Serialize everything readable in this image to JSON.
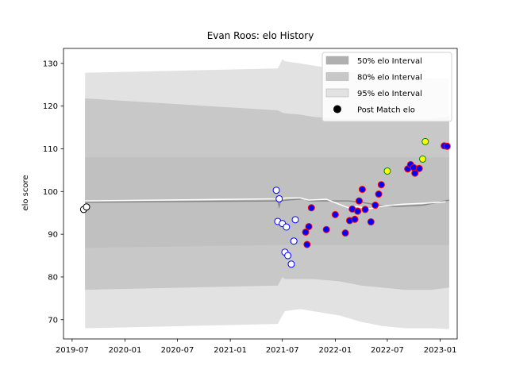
{
  "chart_data": {
    "type": "scatter",
    "title": "Evan Roos: elo History",
    "xlabel": "",
    "ylabel": "elo score",
    "x_ticks": [
      "2019-07",
      "2020-01",
      "2020-07",
      "2021-01",
      "2021-07",
      "2022-01",
      "2022-07",
      "2023-01"
    ],
    "y_ticks": [
      70,
      80,
      90,
      100,
      110,
      120,
      130
    ],
    "xlim": [
      "2019-06-01",
      "2023-03-01"
    ],
    "ylim": [
      65.5,
      133.5
    ],
    "legend": {
      "position": "top-right",
      "entries": [
        {
          "label": "50% elo Interval",
          "color": "#b0b0b0",
          "kind": "patch"
        },
        {
          "label": "80% elo Interval",
          "color": "#c8c8c8",
          "kind": "patch"
        },
        {
          "label": "95% elo Interval",
          "color": "#e2e2e2",
          "kind": "patch"
        },
        {
          "label": "Post Match elo",
          "color": "#000000",
          "kind": "marker"
        }
      ]
    },
    "bands": {
      "x": [
        "2019-08-15",
        "2021-06-15",
        "2021-07-01",
        "2021-07-10",
        "2021-09-01",
        "2021-10-15",
        "2022-01-15",
        "2022-04-01",
        "2022-06-15",
        "2022-09-01",
        "2022-12-01",
        "2023-02-01"
      ],
      "b95": {
        "upper": [
          127.8,
          128.8,
          131.0,
          130.5,
          130.0,
          129.5,
          128.5,
          127.5,
          127.0,
          126.8,
          126.5,
          126.5
        ],
        "lower": [
          68.0,
          69.0,
          71.0,
          72.0,
          72.5,
          72.0,
          71.0,
          69.5,
          68.5,
          68.0,
          68.0,
          67.8
        ],
        "color": "#e2e2e2"
      },
      "b80": {
        "upper": [
          121.8,
          119.0,
          118.5,
          118.3,
          118.0,
          117.5,
          117.0,
          117.0,
          117.0,
          117.0,
          117.0,
          117.5
        ],
        "lower": [
          77.0,
          78.0,
          80.0,
          79.5,
          79.5,
          79.5,
          79.0,
          78.0,
          77.5,
          77.0,
          77.0,
          77.5
        ],
        "color": "#c8c8c8"
      },
      "b50": {
        "upper": [
          108.0,
          108.0,
          108.0,
          108.0,
          108.0,
          108.0,
          108.0,
          108.0,
          108.0,
          108.0,
          108.0,
          108.0
        ],
        "lower": [
          86.8,
          87.5,
          87.5,
          87.5,
          87.5,
          87.5,
          87.5,
          87.5,
          87.5,
          87.5,
          87.5,
          87.5
        ],
        "color": "#c0c0c0"
      }
    },
    "lines": [
      {
        "color": "#888888",
        "x": [
          "2019-08-15",
          "2021-06-15",
          "2021-06-20",
          "2021-06-25",
          "2021-07-15",
          "2021-09-15",
          "2021-10-01",
          "2022-02-15",
          "2022-04-01",
          "2022-06-01",
          "2022-08-01",
          "2022-11-01",
          "2023-02-01"
        ],
        "y": [
          97.5,
          97.8,
          96.5,
          97.8,
          98.0,
          98.3,
          97.8,
          97.8,
          97.5,
          96.8,
          96.5,
          96.8,
          98.0
        ]
      },
      {
        "color": "#ffffff",
        "x": [
          "2019-08-15",
          "2021-06-15",
          "2021-07-15",
          "2021-09-01",
          "2021-10-01",
          "2021-12-01",
          "2022-02-15",
          "2022-03-15",
          "2022-05-01",
          "2022-06-15",
          "2022-08-15",
          "2022-11-15",
          "2023-01-20"
        ],
        "y": [
          97.8,
          98.3,
          98.5,
          98.5,
          98.0,
          98.2,
          96.2,
          96.5,
          96.0,
          96.6,
          97.0,
          97.3,
          97.6
        ]
      }
    ],
    "series": [
      {
        "fill": "#ffffff",
        "stroke": "#000000",
        "points": [
          [
            "2019-08-10",
            95.8
          ],
          [
            "2019-08-20",
            96.4
          ]
        ]
      },
      {
        "fill": "#ffffff",
        "stroke": "#0000ff",
        "points": [
          [
            "2021-06-10",
            100.3
          ],
          [
            "2021-06-20",
            98.3
          ],
          [
            "2021-06-15",
            93.0
          ],
          [
            "2021-07-01",
            92.5
          ],
          [
            "2021-07-15",
            91.7
          ],
          [
            "2021-07-10",
            85.8
          ],
          [
            "2021-07-20",
            85.0
          ],
          [
            "2021-08-01",
            83.0
          ],
          [
            "2021-08-10",
            88.4
          ],
          [
            "2021-08-15",
            93.4
          ]
        ]
      },
      {
        "fill": "#0000ff",
        "stroke": "#ff0000",
        "points": [
          [
            "2021-09-20",
            90.5
          ],
          [
            "2021-09-25",
            87.6
          ],
          [
            "2021-10-01",
            91.8
          ],
          [
            "2021-10-10",
            96.2
          ],
          [
            "2021-12-01",
            91.1
          ],
          [
            "2022-01-01",
            94.6
          ],
          [
            "2022-02-05",
            90.3
          ],
          [
            "2022-02-20",
            93.2
          ],
          [
            "2022-03-01",
            95.9
          ],
          [
            "2022-03-10",
            93.5
          ],
          [
            "2022-03-20",
            95.4
          ],
          [
            "2022-03-25",
            97.8
          ],
          [
            "2022-04-05",
            100.5
          ],
          [
            "2022-04-15",
            95.8
          ],
          [
            "2022-05-05",
            92.9
          ],
          [
            "2022-05-20",
            96.8
          ],
          [
            "2022-06-01",
            99.4
          ],
          [
            "2022-06-10",
            101.6
          ],
          [
            "2022-09-10",
            105.3
          ],
          [
            "2022-09-20",
            106.3
          ],
          [
            "2022-10-01",
            105.6
          ],
          [
            "2022-10-05",
            104.3
          ],
          [
            "2022-10-20",
            105.4
          ],
          [
            "2023-01-15",
            110.7
          ],
          [
            "2023-01-25",
            110.6
          ]
        ]
      },
      {
        "fill": "#ffff00",
        "stroke": "#008000",
        "points": [
          [
            "2022-07-01",
            104.8
          ],
          [
            "2022-11-01",
            107.6
          ],
          [
            "2022-11-10",
            111.7
          ]
        ]
      }
    ]
  }
}
